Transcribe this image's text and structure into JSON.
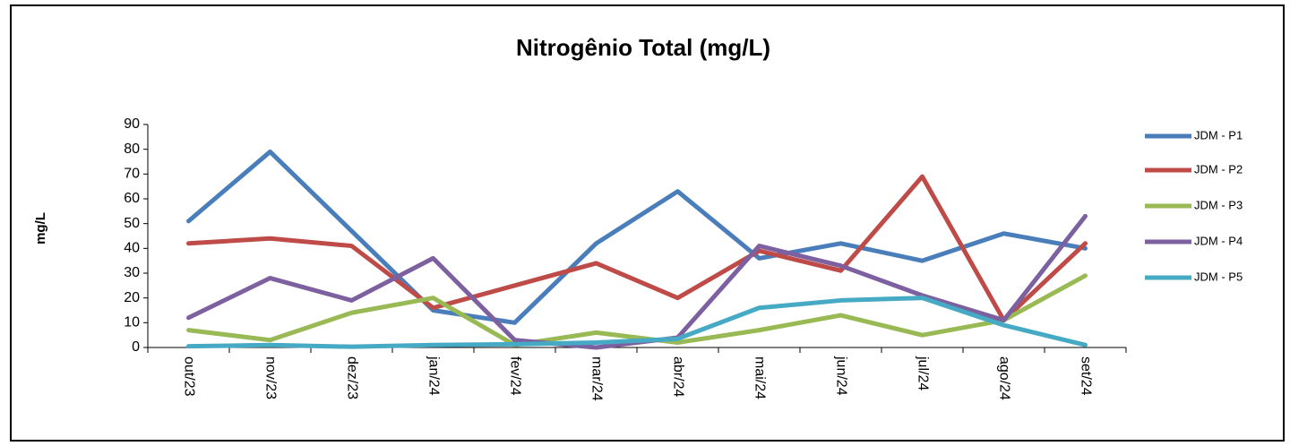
{
  "chart_data": {
    "type": "line",
    "title": "Nitrogênio Total (mg/L)",
    "y_label": "mg/L",
    "categories": [
      "out/23",
      "nov/23",
      "dez/23",
      "jan/24",
      "fev/24",
      "mar/24",
      "abr/24",
      "mai/24",
      "jun/24",
      "jul/24",
      "ago/24",
      "set/24"
    ],
    "series": [
      {
        "name": "JDM - P1",
        "color": "#4a7ebb",
        "values": [
          51,
          79,
          47,
          15,
          10,
          42,
          63,
          36,
          42,
          35,
          46,
          40
        ]
      },
      {
        "name": "JDM - P2",
        "color": "#be4b48",
        "values": [
          42,
          44,
          41,
          16,
          25,
          34,
          20,
          39,
          31,
          69,
          11,
          42
        ]
      },
      {
        "name": "JDM - P3",
        "color": "#98b954",
        "values": [
          7,
          3,
          14,
          20,
          1,
          6,
          2,
          7,
          13,
          5,
          11,
          29
        ]
      },
      {
        "name": "JDM - P4",
        "color": "#7d60a0",
        "values": [
          12,
          28,
          19,
          36,
          3,
          0,
          4,
          41,
          33,
          21,
          11,
          53
        ]
      },
      {
        "name": "JDM - P5",
        "color": "#46aac5",
        "values": [
          0.5,
          1,
          0.3,
          1,
          1.3,
          2,
          3.5,
          16,
          19,
          20,
          9,
          1
        ]
      }
    ],
    "ylim": [
      0,
      90
    ],
    "yticks": [
      0,
      10,
      20,
      30,
      40,
      50,
      60,
      70,
      80,
      90
    ],
    "grid": false,
    "legend": "right"
  }
}
